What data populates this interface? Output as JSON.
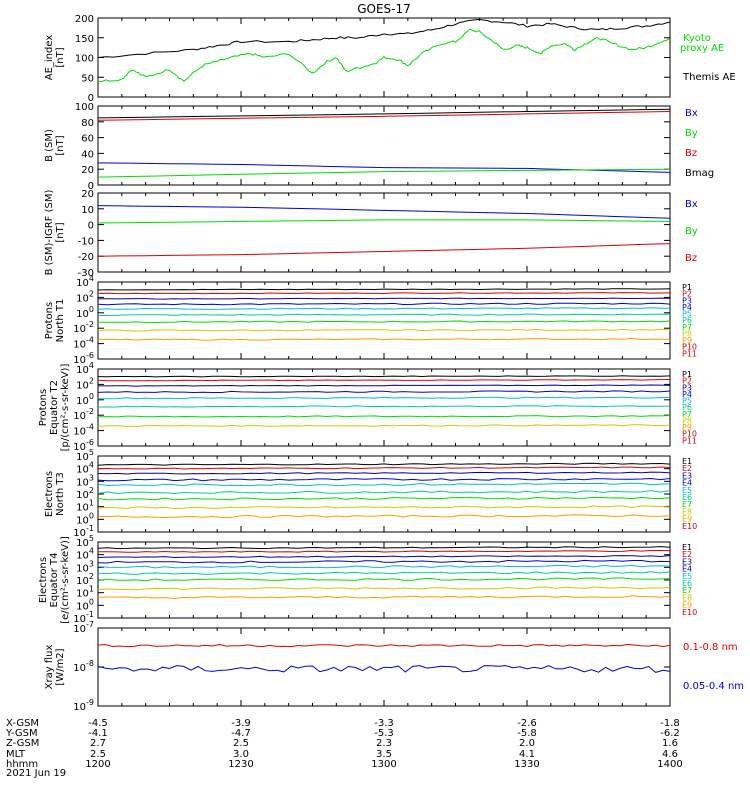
{
  "title": "GOES-17",
  "colors": {
    "black": "#000000",
    "green": "#00dd00",
    "red": "#dd0000",
    "blue": "#0000dd",
    "navy": "#0000aa",
    "cyan": "#00bbdd",
    "teal": "#00cc99",
    "yellow": "#dddd00",
    "orange": "#ff9900",
    "dark_yellow": "#cccc00",
    "dark_red": "#cc0000"
  },
  "chart_data": [
    {
      "type": "line",
      "id": "ae",
      "ylabel": [
        "AE_index",
        "[nT]"
      ],
      "ylim": [
        0,
        200
      ],
      "yticks": [
        "0",
        "50",
        "100",
        "150",
        "200"
      ],
      "series": [
        {
          "name": "Themis AE",
          "color": "#000000",
          "x": [
            0,
            10,
            20,
            25,
            30,
            40,
            45,
            50,
            55,
            60,
            65,
            70,
            75,
            80,
            85,
            90,
            95,
            100,
            105,
            110,
            115,
            120
          ],
          "y": [
            100,
            110,
            120,
            130,
            140,
            140,
            145,
            150,
            150,
            160,
            160,
            170,
            185,
            195,
            190,
            180,
            185,
            175,
            170,
            175,
            180,
            190
          ]
        },
        {
          "name": "Kyoto proxy AE",
          "color": "#00dd00",
          "x": [
            0,
            5,
            7,
            10,
            15,
            18,
            22,
            25,
            28,
            32,
            35,
            40,
            45,
            48,
            50,
            52,
            55,
            58,
            60,
            63,
            65,
            68,
            72,
            75,
            78,
            80,
            83,
            85,
            88,
            90,
            93,
            95,
            98,
            100,
            103,
            105,
            108,
            112,
            115,
            118,
            120
          ],
          "y": [
            40,
            45,
            70,
            50,
            70,
            40,
            80,
            90,
            100,
            110,
            100,
            110,
            60,
            90,
            100,
            65,
            75,
            85,
            100,
            95,
            80,
            110,
            135,
            140,
            170,
            165,
            140,
            120,
            130,
            125,
            110,
            130,
            135,
            120,
            140,
            150,
            135,
            120,
            125,
            140,
            145
          ]
        }
      ],
      "legend": [
        "Kyoto",
        "proxy AE",
        "Themis AE"
      ]
    },
    {
      "type": "line",
      "id": "bsm",
      "ylabel": [
        "B (SM)",
        "[nT]"
      ],
      "ylim": [
        0,
        100
      ],
      "yticks": [
        "0",
        "20",
        "40",
        "60",
        "80",
        "100"
      ],
      "series": [
        {
          "name": "Bmag",
          "color": "#000000",
          "x": [
            0,
            60,
            120
          ],
          "y": [
            85,
            90,
            96
          ]
        },
        {
          "name": "Bz",
          "color": "#dd0000",
          "x": [
            0,
            60,
            120
          ],
          "y": [
            82,
            87,
            93
          ]
        },
        {
          "name": "Bx",
          "color": "#0000dd",
          "x": [
            0,
            30,
            60,
            90,
            120
          ],
          "y": [
            28,
            26,
            22,
            21,
            16
          ]
        },
        {
          "name": "By",
          "color": "#00dd00",
          "x": [
            0,
            60,
            120
          ],
          "y": [
            10,
            17,
            20
          ]
        }
      ],
      "legend": [
        "Bx",
        "By",
        "Bz",
        "Bmag"
      ]
    },
    {
      "type": "line",
      "id": "bigrf",
      "ylabel": [
        "B (SM)-IGRF (SM)",
        "[nT]"
      ],
      "ylim": [
        -30,
        20
      ],
      "yticks": [
        "-30",
        "-20",
        "-10",
        "0",
        "10",
        "20"
      ],
      "series": [
        {
          "name": "Bx",
          "color": "#0000dd",
          "x": [
            0,
            30,
            60,
            90,
            120
          ],
          "y": [
            12,
            11,
            9,
            7,
            4
          ]
        },
        {
          "name": "By",
          "color": "#00dd00",
          "x": [
            0,
            30,
            60,
            90,
            120
          ],
          "y": [
            1,
            2,
            3,
            3,
            2
          ]
        },
        {
          "name": "Bz",
          "color": "#dd0000",
          "x": [
            0,
            30,
            60,
            90,
            120
          ],
          "y": [
            -20,
            -19,
            -17,
            -15,
            -12
          ]
        }
      ],
      "legend": [
        "Bx",
        "By",
        "Bz"
      ]
    },
    {
      "type": "line",
      "id": "protons_t1",
      "ylabel": [
        "Protons",
        "North T1"
      ],
      "ylog": true,
      "ylim": [
        -6,
        4
      ],
      "yticks": [
        "10^-6",
        "10^-4",
        "10^-2",
        "10^0",
        "10^2",
        "10^4"
      ],
      "levels": [
        3.0,
        2.5,
        1.8,
        1.1,
        0.5,
        -0.3,
        -1.2,
        -2.3,
        -3.5
      ],
      "legend": [
        "P1",
        "P2",
        "P3",
        "P4",
        "P5",
        "P6",
        "P7",
        "P8",
        "P9",
        "P10",
        "P11"
      ]
    },
    {
      "type": "line",
      "id": "protons_t2",
      "ylabel": [
        "Protons",
        "Equator T2",
        "[p/(cm²-s-sr-keV)]"
      ],
      "ylog": true,
      "ylim": [
        -6,
        4
      ],
      "yticks": [
        "10^-6",
        "10^-4",
        "10^-2",
        "10^0",
        "10^2",
        "10^4"
      ],
      "levels": [
        3.0,
        2.5,
        1.8,
        1.0,
        0.2,
        -0.9,
        -2.2,
        -3.4
      ],
      "legend": [
        "P1",
        "P2",
        "P3",
        "P4",
        "P5",
        "P6",
        "P7",
        "P8",
        "P9",
        "P10",
        "P11"
      ]
    },
    {
      "type": "line",
      "id": "electrons_t3",
      "ylabel": [
        "Electrons",
        "North T3"
      ],
      "ylog": true,
      "ylim": [
        -1,
        5
      ],
      "yticks": [
        "10^-1",
        "10^0",
        "10^1",
        "10^2",
        "10^3",
        "10^4",
        "10^5"
      ],
      "levels": [
        4.3,
        4.0,
        3.6,
        3.1,
        2.7,
        2.1,
        1.6,
        0.9,
        0.2
      ],
      "legend": [
        "E1",
        "E2",
        "E3",
        "E4",
        "E5",
        "E6",
        "E7",
        "E8",
        "E9",
        "E10"
      ]
    },
    {
      "type": "line",
      "id": "electrons_t4",
      "ylabel": [
        "Electrons",
        "Equator T4",
        "[e/(cm²-s-sr-keV)]"
      ],
      "ylog": true,
      "ylim": [
        -1,
        5
      ],
      "yticks": [
        "10^-1",
        "10^0",
        "10^1",
        "10^2",
        "10^3",
        "10^4",
        "10^5"
      ],
      "levels": [
        4.5,
        4.2,
        3.8,
        3.4,
        3.0,
        2.5,
        2.0,
        1.3,
        0.6
      ],
      "legend": [
        "E1",
        "E2",
        "E3",
        "E4",
        "E5",
        "E6",
        "E7",
        "E8",
        "E9",
        "E10"
      ]
    },
    {
      "type": "line",
      "id": "xray",
      "ylabel": [
        "Xray flux",
        "[W/m2]"
      ],
      "ylog": true,
      "ylim": [
        -9,
        -7
      ],
      "yticks": [
        "10^-9",
        "10^-8",
        "10^-7"
      ],
      "series": [
        {
          "name": "0.1-0.8 nm",
          "color": "#dd0000",
          "level": -7.45
        },
        {
          "name": "0.05-0.4 nm",
          "color": "#0000dd",
          "level": -8.05
        }
      ],
      "legend": [
        "0.1-0.8 nm",
        "0.05-0.4 nm"
      ]
    }
  ],
  "x_axis": {
    "row_labels": [
      "X-GSM",
      "Y-GSM",
      "Z-GSM",
      "MLT",
      "hhmm",
      "2021 Jun 19"
    ],
    "ticks": [
      {
        "xgsm": "-4.5",
        "ygsm": "-4.1",
        "zgsm": "2.7",
        "mlt": "2.5",
        "hhmm": "1200"
      },
      {
        "xgsm": "-3.9",
        "ygsm": "-4.7",
        "zgsm": "2.5",
        "mlt": "3.0",
        "hhmm": "1230"
      },
      {
        "xgsm": "-3.3",
        "ygsm": "-5.3",
        "zgsm": "2.3",
        "mlt": "3.5",
        "hhmm": "1300"
      },
      {
        "xgsm": "-2.6",
        "ygsm": "-5.8",
        "zgsm": "2.0",
        "mlt": "4.1",
        "hhmm": "1330"
      },
      {
        "xgsm": "-1.8",
        "ygsm": "-6.2",
        "zgsm": "1.6",
        "mlt": "4.6",
        "hhmm": "1400"
      }
    ]
  }
}
